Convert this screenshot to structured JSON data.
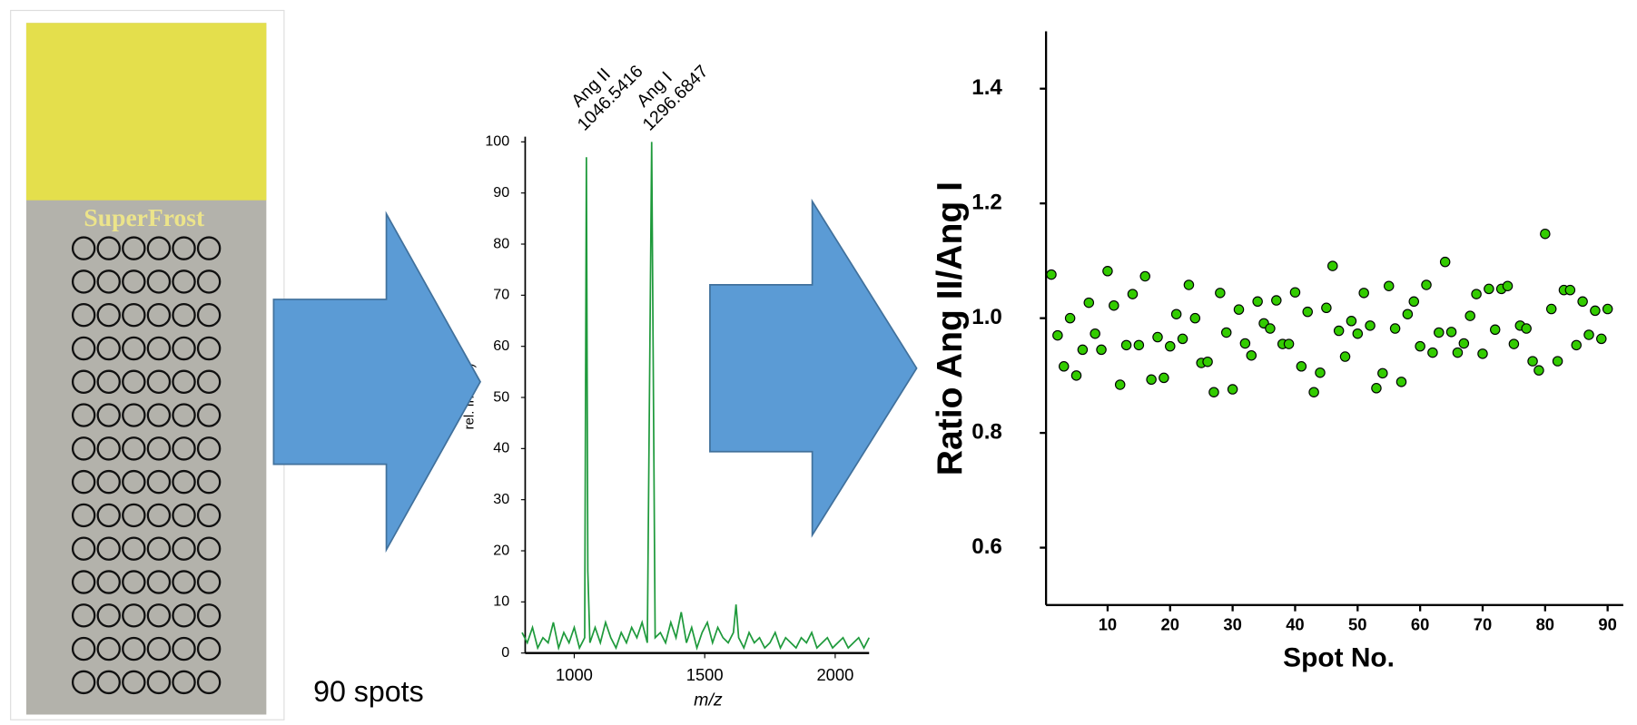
{
  "slide": {
    "label": "SuperFrost",
    "caption": "90 spots"
  },
  "chart_data": [
    {
      "type": "line",
      "ylabel": "rel. Int. (%)",
      "xlabel": "m/z",
      "color": "#1f9a3c",
      "annotations": [
        {
          "label": "Ang II",
          "x": 1046.5416
        },
        {
          "label": "Ang I",
          "x": 1296.6847
        }
      ],
      "x": [
        800,
        820,
        840,
        860,
        880,
        900,
        920,
        940,
        960,
        980,
        1000,
        1020,
        1040,
        1046.5416,
        1052,
        1060,
        1080,
        1100,
        1120,
        1140,
        1160,
        1180,
        1200,
        1220,
        1240,
        1260,
        1280,
        1296.6847,
        1310,
        1330,
        1350,
        1370,
        1390,
        1410,
        1430,
        1450,
        1470,
        1490,
        1510,
        1530,
        1550,
        1570,
        1590,
        1610,
        1620,
        1630,
        1650,
        1670,
        1690,
        1710,
        1730,
        1750,
        1770,
        1790,
        1810,
        1830,
        1850,
        1870,
        1890,
        1910,
        1930,
        1950,
        1970,
        1990,
        2010,
        2030,
        2050,
        2070,
        2090,
        2110,
        2130
      ],
      "values": [
        4,
        2,
        5,
        1,
        3,
        2,
        6,
        1,
        4,
        2,
        5,
        1,
        3,
        97,
        16,
        2,
        5,
        2,
        6,
        3,
        1,
        4,
        2,
        5,
        3,
        6,
        2,
        100,
        3,
        4,
        2,
        6,
        3,
        8,
        2,
        5,
        1,
        4,
        6,
        2,
        5,
        3,
        2,
        4,
        9.5,
        3,
        1,
        4,
        2,
        3,
        1,
        2,
        4,
        1,
        3,
        2,
        1,
        3,
        2,
        4,
        1,
        2,
        3,
        1,
        2,
        3,
        1,
        2,
        3,
        1,
        3
      ],
      "xlim": [
        800,
        2130
      ],
      "xticks": [
        1000,
        1500,
        2000
      ],
      "ylim": [
        0,
        100
      ],
      "yticks": [
        0,
        10,
        20,
        30,
        40,
        50,
        60,
        70,
        80,
        90,
        100
      ]
    },
    {
      "type": "scatter",
      "ylabel": "Ratio Ang II/Ang I",
      "xlabel": "Spot No.",
      "color": "#33cc00",
      "x": [
        1,
        2,
        3,
        4,
        5,
        6,
        7,
        8,
        9,
        10,
        11,
        12,
        13,
        14,
        15,
        16,
        17,
        18,
        19,
        20,
        21,
        22,
        23,
        24,
        25,
        26,
        27,
        28,
        29,
        30,
        31,
        32,
        33,
        34,
        35,
        36,
        37,
        38,
        39,
        40,
        41,
        42,
        43,
        44,
        45,
        46,
        47,
        48,
        49,
        50,
        51,
        52,
        53,
        54,
        55,
        56,
        57,
        58,
        59,
        60,
        61,
        62,
        63,
        64,
        65,
        66,
        67,
        68,
        69,
        70,
        71,
        72,
        73,
        74,
        75,
        76,
        77,
        78,
        79,
        80,
        81,
        82,
        83,
        84,
        85,
        86,
        87,
        88,
        89,
        90
      ],
      "values": [
        1.076,
        0.97,
        0.916,
        1.0,
        0.9,
        0.945,
        1.027,
        0.973,
        0.945,
        1.082,
        1.022,
        0.884,
        0.953,
        1.042,
        0.953,
        1.073,
        0.893,
        0.967,
        0.896,
        0.951,
        1.007,
        0.964,
        1.058,
        1.0,
        0.922,
        0.924,
        0.871,
        1.044,
        0.975,
        0.876,
        1.015,
        0.956,
        0.935,
        1.029,
        0.991,
        0.982,
        1.031,
        0.955,
        0.955,
        1.045,
        0.916,
        1.011,
        0.871,
        0.905,
        1.018,
        1.091,
        0.978,
        0.933,
        0.995,
        0.973,
        1.044,
        0.987,
        0.878,
        0.904,
        1.056,
        0.982,
        0.889,
        1.007,
        1.029,
        0.951,
        1.058,
        0.94,
        0.975,
        1.098,
        0.976,
        0.94,
        0.956,
        1.004,
        1.042,
        0.938,
        1.051,
        0.98,
        1.051,
        1.056,
        0.955,
        0.987,
        0.982,
        0.925,
        0.909,
        1.147,
        1.016,
        0.925,
        1.049,
        1.049,
        0.953,
        1.029,
        0.971,
        1.013,
        0.964,
        1.016
      ],
      "xlim": [
        0.15,
        92.5
      ],
      "xticks": [
        10,
        20,
        30,
        40,
        50,
        60,
        70,
        80,
        90
      ],
      "ylim": [
        0.5,
        1.5
      ],
      "yticks": [
        0.6,
        0.8,
        {
          "value": 1,
          "label": "1.0"
        },
        1.2,
        1.4
      ]
    }
  ]
}
